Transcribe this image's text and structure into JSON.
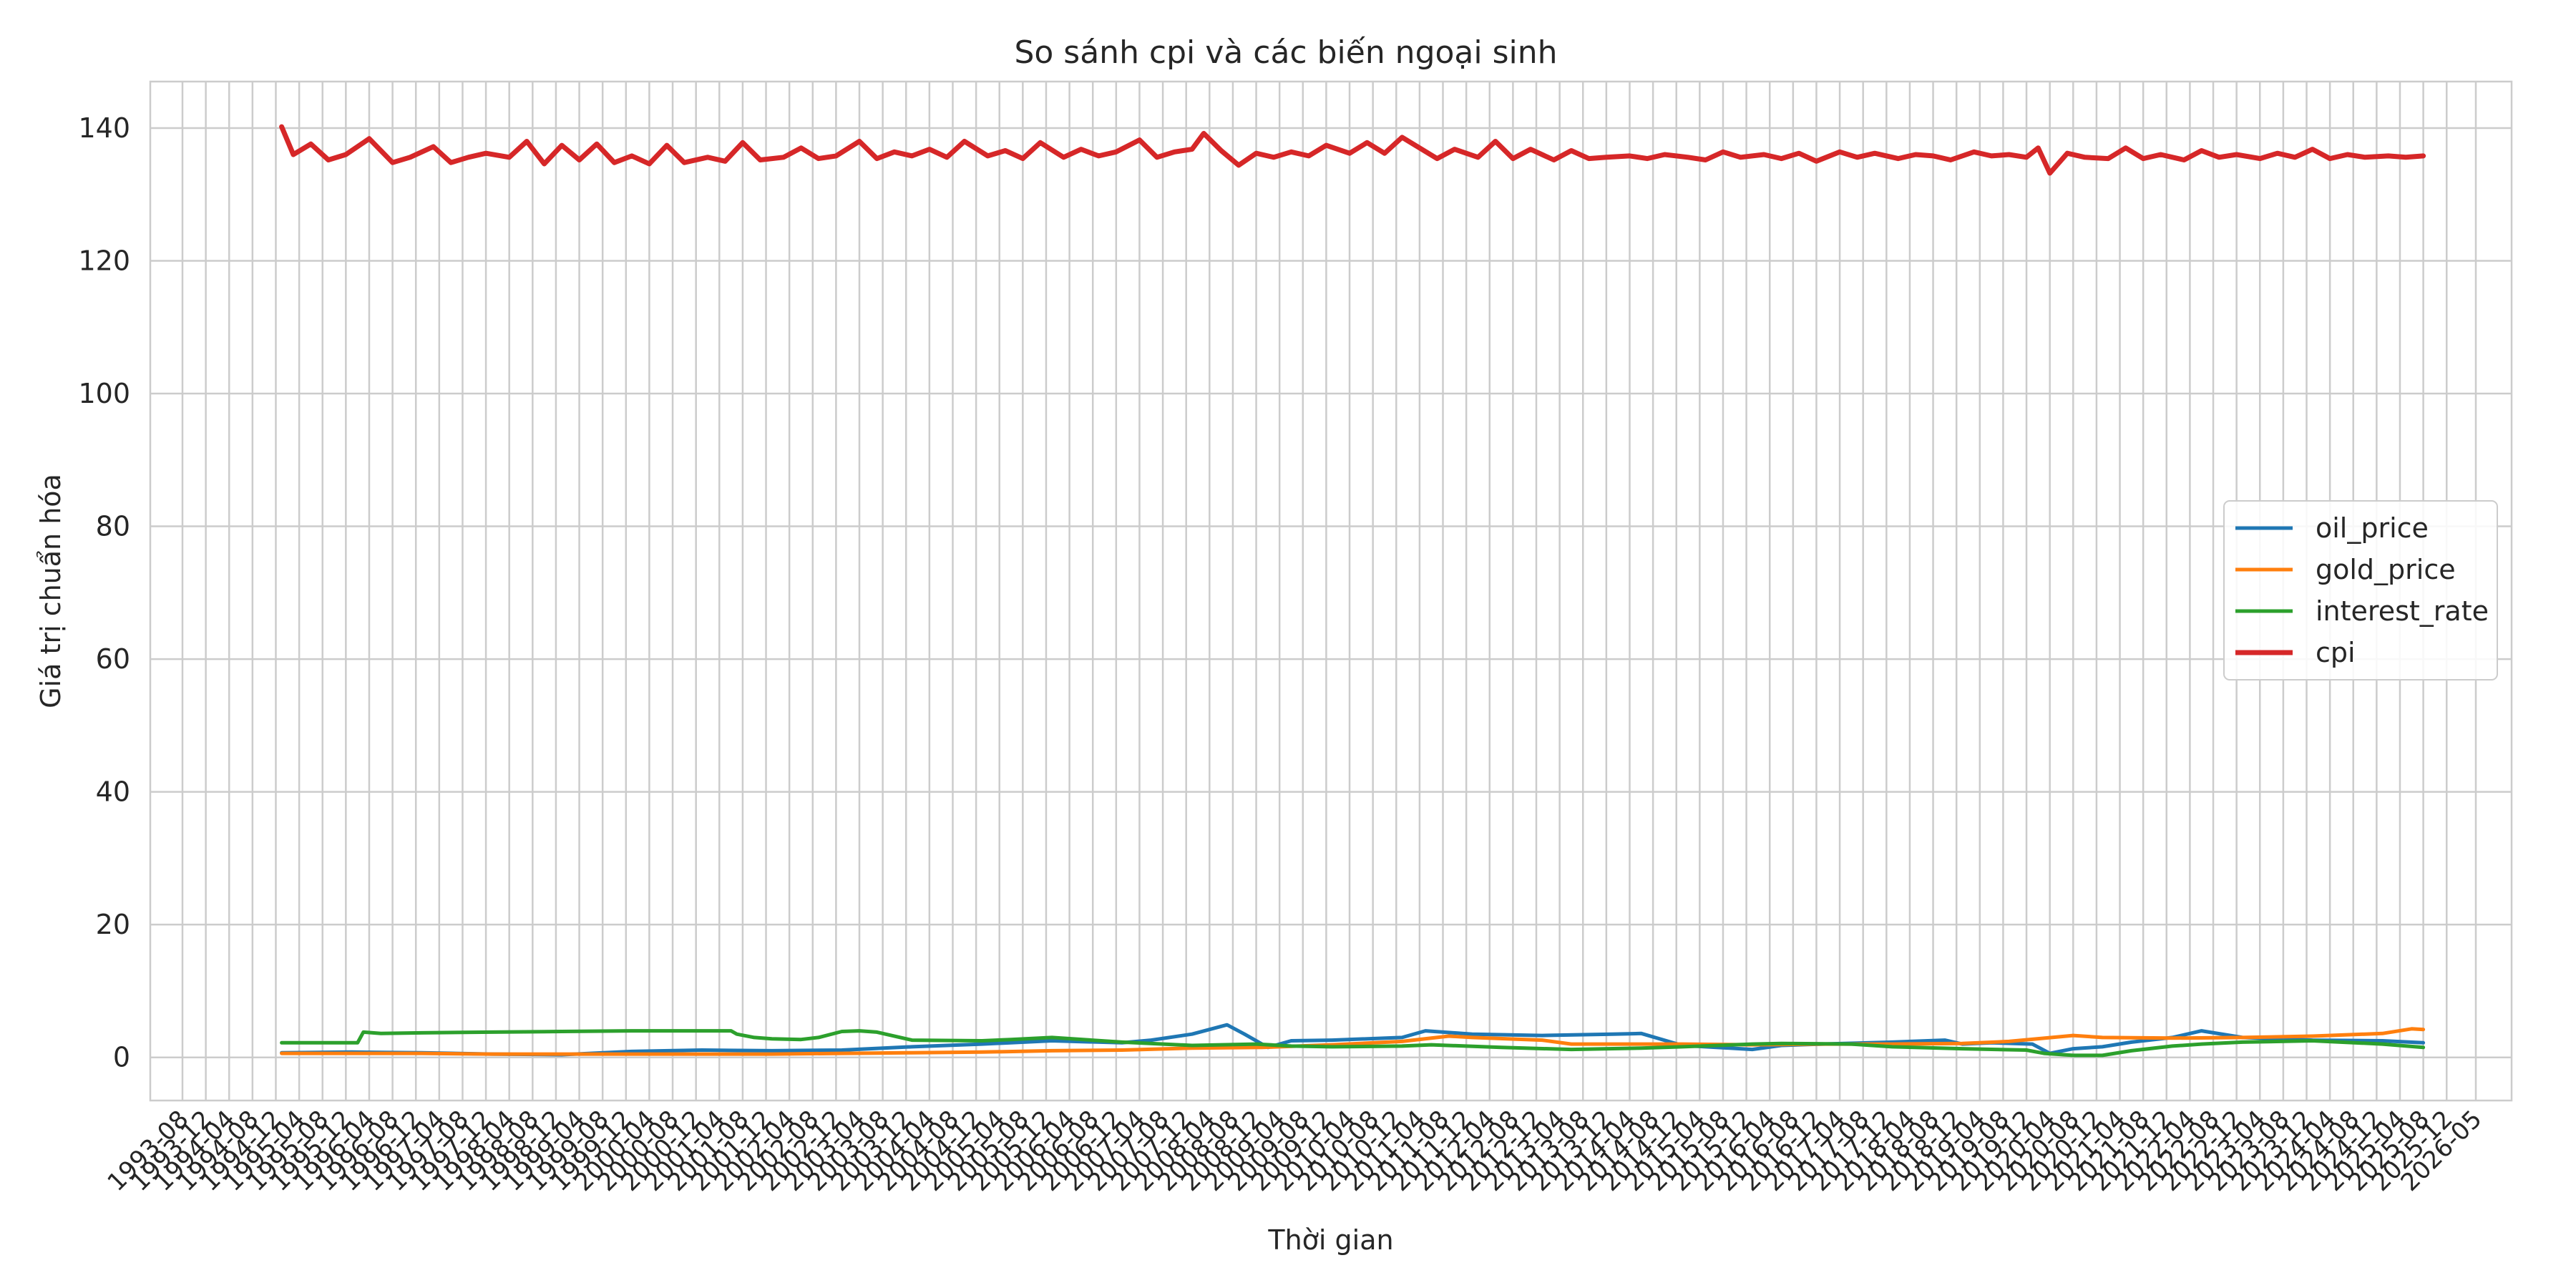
{
  "chart_data": {
    "type": "line",
    "title": "So sánh cpi và các biến ngoại sinh",
    "xlabel": "Thời gian",
    "ylabel": "Giá trị chuẩn hóa",
    "ylim": [
      -6.5,
      147
    ],
    "yticks": [
      0,
      20,
      40,
      60,
      80,
      100,
      120,
      140
    ],
    "grid": true,
    "legend_position": "center-right",
    "x_range": [
      "1993-08",
      "2026-05"
    ],
    "x_tick_labels": [
      "1993-08",
      "1993-12",
      "1994-04",
      "1994-08",
      "1994-12",
      "1995-04",
      "1995-08",
      "1995-12",
      "1996-04",
      "1996-08",
      "1996-12",
      "1997-04",
      "1997-08",
      "1997-12",
      "1998-04",
      "1998-08",
      "1998-12",
      "1999-04",
      "1999-08",
      "1999-12",
      "2000-04",
      "2000-08",
      "2000-12",
      "2001-04",
      "2001-08",
      "2001-12",
      "2002-04",
      "2002-08",
      "2002-12",
      "2003-04",
      "2003-08",
      "2003-12",
      "2004-04",
      "2004-08",
      "2004-12",
      "2005-04",
      "2005-08",
      "2005-12",
      "2006-04",
      "2006-08",
      "2006-12",
      "2007-04",
      "2007-08",
      "2007-12",
      "2008-04",
      "2008-08",
      "2008-12",
      "2009-04",
      "2009-08",
      "2009-12",
      "2010-04",
      "2010-08",
      "2010-12",
      "2011-04",
      "2011-08",
      "2011-12",
      "2012-04",
      "2012-08",
      "2012-12",
      "2013-04",
      "2013-08",
      "2013-12",
      "2014-04",
      "2014-08",
      "2014-12",
      "2015-04",
      "2015-08",
      "2015-12",
      "2016-04",
      "2016-08",
      "2016-12",
      "2017-04",
      "2017-08",
      "2017-12",
      "2018-04",
      "2018-08",
      "2018-12",
      "2019-04",
      "2019-08",
      "2019-12",
      "2020-04",
      "2020-08",
      "2020-12",
      "2021-04",
      "2021-08",
      "2021-12",
      "2022-04",
      "2022-08",
      "2022-12",
      "2023-04",
      "2023-08",
      "2023-12",
      "2024-04",
      "2024-08",
      "2024-12",
      "2025-04",
      "2025-08",
      "2025-12",
      "2026-05"
    ],
    "series": [
      {
        "name": "oil_price",
        "color": "#1f77b4",
        "x": [
          "1995-01",
          "1996-01",
          "1997-01",
          "1998-01",
          "1999-01",
          "2000-01",
          "2001-01",
          "2002-01",
          "2003-01",
          "2004-01",
          "2005-01",
          "2006-01",
          "2007-01",
          "2007-06",
          "2008-01",
          "2008-07",
          "2008-10",
          "2009-02",
          "2009-06",
          "2010-01",
          "2011-01",
          "2011-05",
          "2012-01",
          "2013-01",
          "2014-01",
          "2014-06",
          "2015-01",
          "2016-01",
          "2016-06",
          "2017-01",
          "2018-01",
          "2018-10",
          "2019-01",
          "2019-06",
          "2020-01",
          "2020-04",
          "2020-08",
          "2021-01",
          "2021-06",
          "2022-01",
          "2022-06",
          "2023-01",
          "2024-01",
          "2025-01",
          "2025-08"
        ],
        "values": [
          0.7,
          0.8,
          0.7,
          0.5,
          0.4,
          0.9,
          1.1,
          1.0,
          1.1,
          1.6,
          2.0,
          2.5,
          2.2,
          2.6,
          3.5,
          4.9,
          3.5,
          1.5,
          2.5,
          2.6,
          3.0,
          4.0,
          3.5,
          3.3,
          3.5,
          3.6,
          1.8,
          1.2,
          1.8,
          2.0,
          2.3,
          2.6,
          2.0,
          2.2,
          2.0,
          0.6,
          1.3,
          1.6,
          2.3,
          3.0,
          4.0,
          3.0,
          2.6,
          2.5,
          2.2
        ]
      },
      {
        "name": "gold_price",
        "color": "#ff7f0e",
        "x": [
          "1995-01",
          "1996-01",
          "1997-01",
          "1998-01",
          "1999-01",
          "2000-01",
          "2001-01",
          "2002-01",
          "2003-01",
          "2004-01",
          "2005-01",
          "2006-01",
          "2007-01",
          "2008-01",
          "2009-01",
          "2010-01",
          "2011-01",
          "2011-09",
          "2012-01",
          "2013-01",
          "2013-06",
          "2014-01",
          "2015-01",
          "2016-01",
          "2017-01",
          "2018-01",
          "2019-01",
          "2019-09",
          "2020-08",
          "2021-01",
          "2022-01",
          "2023-01",
          "2024-01",
          "2025-01",
          "2025-06",
          "2025-08"
        ],
        "values": [
          0.6,
          0.6,
          0.6,
          0.5,
          0.5,
          0.5,
          0.5,
          0.5,
          0.6,
          0.7,
          0.8,
          1.0,
          1.1,
          1.4,
          1.5,
          1.9,
          2.4,
          3.2,
          3.0,
          2.6,
          2.0,
          2.0,
          2.0,
          1.9,
          2.0,
          2.0,
          2.1,
          2.4,
          3.3,
          3.0,
          2.9,
          3.0,
          3.2,
          3.6,
          4.3,
          4.2
        ]
      },
      {
        "name": "interest_rate",
        "color": "#2ca02c",
        "x": [
          "1995-01",
          "1996-01",
          "1996-02",
          "1996-03",
          "1996-06",
          "1997-01",
          "1998-01",
          "1999-01",
          "2000-01",
          "2001-01",
          "2001-06",
          "2001-07",
          "2001-10",
          "2002-01",
          "2002-06",
          "2002-09",
          "2003-01",
          "2003-04",
          "2003-07",
          "2004-01",
          "2005-01",
          "2005-06",
          "2006-01",
          "2007-01",
          "2008-01",
          "2008-12",
          "2009-06",
          "2010-01",
          "2011-01",
          "2011-06",
          "2012-06",
          "2013-06",
          "2014-06",
          "2015-01",
          "2016-01",
          "2016-06",
          "2017-06",
          "2018-01",
          "2019-01",
          "2019-12",
          "2020-03",
          "2020-08",
          "2021-01",
          "2021-06",
          "2022-01",
          "2022-06",
          "2023-01",
          "2024-01",
          "2025-01",
          "2025-08"
        ],
        "values": [
          2.2,
          2.2,
          2.2,
          3.8,
          3.6,
          3.7,
          3.8,
          3.9,
          4.0,
          4.0,
          4.0,
          3.5,
          3.0,
          2.8,
          2.7,
          3.0,
          3.9,
          4.0,
          3.8,
          2.6,
          2.5,
          2.7,
          3.0,
          2.3,
          1.8,
          2.0,
          1.7,
          1.6,
          1.7,
          1.9,
          1.5,
          1.2,
          1.4,
          1.6,
          2.0,
          2.1,
          2.0,
          1.6,
          1.3,
          1.1,
          0.6,
          0.3,
          0.3,
          1.0,
          1.7,
          2.0,
          2.3,
          2.5,
          2.0,
          1.5
        ]
      },
      {
        "name": "cpi",
        "color": "#d62728",
        "x": [
          "1995-01",
          "1995-03",
          "1995-06",
          "1995-09",
          "1995-12",
          "1996-04",
          "1996-08",
          "1996-11",
          "1997-03",
          "1997-06",
          "1997-09",
          "1997-12",
          "1998-04",
          "1998-07",
          "1998-10",
          "1999-01",
          "1999-04",
          "1999-07",
          "1999-10",
          "2000-01",
          "2000-04",
          "2000-07",
          "2000-10",
          "2001-02",
          "2001-05",
          "2001-08",
          "2001-11",
          "2002-03",
          "2002-06",
          "2002-09",
          "2002-12",
          "2003-04",
          "2003-07",
          "2003-10",
          "2004-01",
          "2004-04",
          "2004-07",
          "2004-10",
          "2005-02",
          "2005-05",
          "2005-08",
          "2005-11",
          "2006-03",
          "2006-06",
          "2006-09",
          "2006-12",
          "2007-04",
          "2007-07",
          "2007-10",
          "2008-01",
          "2008-03",
          "2008-06",
          "2008-09",
          "2008-12",
          "2009-03",
          "2009-06",
          "2009-09",
          "2009-12",
          "2010-04",
          "2010-07",
          "2010-10",
          "2011-01",
          "2011-04",
          "2011-07",
          "2011-10",
          "2012-02",
          "2012-05",
          "2012-08",
          "2012-11",
          "2013-03",
          "2013-06",
          "2013-09",
          "2013-12",
          "2014-04",
          "2014-07",
          "2014-10",
          "2015-02",
          "2015-05",
          "2015-08",
          "2015-11",
          "2016-03",
          "2016-06",
          "2016-09",
          "2016-12",
          "2017-04",
          "2017-07",
          "2017-10",
          "2018-02",
          "2018-05",
          "2018-08",
          "2018-11",
          "2019-03",
          "2019-06",
          "2019-09",
          "2019-12",
          "2020-02",
          "2020-04",
          "2020-07",
          "2020-10",
          "2021-02",
          "2021-05",
          "2021-08",
          "2021-11",
          "2022-03",
          "2022-06",
          "2022-09",
          "2022-12",
          "2023-04",
          "2023-07",
          "2023-10",
          "2024-01",
          "2024-04",
          "2024-07",
          "2024-10",
          "2025-02",
          "2025-05",
          "2025-08"
        ],
        "values": [
          140.2,
          136.0,
          137.6,
          135.2,
          136.0,
          138.4,
          134.8,
          135.6,
          137.2,
          134.8,
          135.6,
          136.2,
          135.6,
          138.0,
          134.6,
          137.4,
          135.2,
          137.6,
          134.8,
          135.8,
          134.6,
          137.4,
          134.8,
          135.6,
          135.0,
          137.8,
          135.2,
          135.6,
          137.0,
          135.4,
          135.8,
          138.0,
          135.4,
          136.4,
          135.8,
          136.8,
          135.6,
          138.0,
          135.8,
          136.6,
          135.4,
          137.8,
          135.6,
          136.8,
          135.8,
          136.4,
          138.2,
          135.6,
          136.4,
          136.8,
          139.2,
          136.6,
          134.4,
          136.2,
          135.6,
          136.4,
          135.8,
          137.4,
          136.2,
          137.8,
          136.2,
          138.6,
          137.0,
          135.4,
          136.8,
          135.6,
          138.0,
          135.4,
          136.8,
          135.2,
          136.6,
          135.4,
          135.6,
          135.8,
          135.4,
          136.0,
          135.6,
          135.2,
          136.4,
          135.6,
          136.0,
          135.4,
          136.2,
          135.0,
          136.4,
          135.6,
          136.2,
          135.4,
          136.0,
          135.8,
          135.2,
          136.4,
          135.8,
          136.0,
          135.6,
          137.0,
          133.2,
          136.2,
          135.6,
          135.4,
          137.0,
          135.4,
          136.0,
          135.2,
          136.6,
          135.6,
          136.0,
          135.4,
          136.2,
          135.6,
          136.8,
          135.4,
          136.0,
          135.6,
          135.8,
          135.6,
          135.8
        ]
      }
    ]
  }
}
